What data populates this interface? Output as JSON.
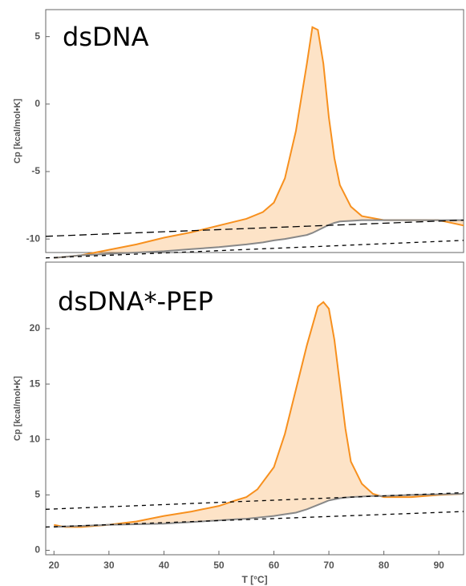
{
  "chart_data": [
    {
      "type": "line",
      "label": "dsDNA",
      "ylabel": "Cp [kcal/mol•K]",
      "xlim": [
        18.5,
        94.5
      ],
      "ylim": [
        -11,
        7
      ],
      "yticks": [
        -10,
        -5,
        0,
        5
      ],
      "series": [
        {
          "color": "#f7901e",
          "x": [
            20,
            25,
            30,
            35,
            40,
            45,
            50,
            55,
            58,
            60,
            62,
            64,
            66,
            67,
            68,
            69,
            70,
            71,
            72,
            74,
            76,
            80,
            85,
            90,
            94.5
          ],
          "values": [
            -11.4,
            -11.2,
            -10.8,
            -10.4,
            -9.9,
            -9.5,
            -9.0,
            -8.5,
            -8.0,
            -7.3,
            -5.5,
            -2,
            3,
            5.7,
            5.5,
            3,
            -1,
            -4,
            -6,
            -7.6,
            -8.3,
            -8.6,
            -8.6,
            -8.6,
            -9.0
          ]
        },
        {
          "color": "#888888",
          "x": [
            20,
            25,
            30,
            35,
            40,
            45,
            50,
            55,
            58,
            60,
            62,
            64,
            66,
            67,
            68,
            69,
            70,
            71,
            72,
            74,
            76,
            80,
            85,
            90,
            94.5
          ],
          "values": [
            -11.4,
            -11.2,
            -11.1,
            -11.0,
            -10.9,
            -10.75,
            -10.6,
            -10.4,
            -10.25,
            -10.1,
            -10.0,
            -9.85,
            -9.7,
            -9.55,
            -9.35,
            -9.15,
            -8.95,
            -8.8,
            -8.7,
            -8.65,
            -8.6,
            -8.6,
            -8.6,
            -8.6,
            -8.6
          ]
        },
        {
          "color": "#000000",
          "dashed": true,
          "x": [
            18.5,
            94.5
          ],
          "values": [
            -9.8,
            -8.6
          ]
        },
        {
          "color": "#000000",
          "dashed": true,
          "x": [
            18.5,
            94.5
          ],
          "values": [
            -11.4,
            -10.1
          ]
        }
      ]
    },
    {
      "type": "line",
      "label": "dsDNA*-PEP",
      "ylabel": "Cp [kcal/mol•K]",
      "xlabel": "T  [°C]",
      "xlim": [
        18.5,
        94.5
      ],
      "ylim": [
        -0.4,
        26
      ],
      "yticks": [
        0,
        5,
        10,
        15,
        20
      ],
      "xticks": [
        20,
        30,
        40,
        50,
        60,
        70,
        80,
        90
      ],
      "series": [
        {
          "color": "#f7901e",
          "x": [
            20,
            22,
            25,
            30,
            35,
            40,
            45,
            50,
            53,
            55,
            57,
            60,
            62,
            64,
            66,
            68,
            69,
            70,
            71,
            72,
            73,
            74,
            76,
            78,
            80,
            85,
            90,
            94.5
          ],
          "values": [
            2.3,
            2.1,
            2.1,
            2.3,
            2.6,
            3.1,
            3.5,
            4.0,
            4.5,
            4.8,
            5.5,
            7.5,
            10.5,
            14.5,
            18.5,
            22,
            22.4,
            21.8,
            19,
            15,
            11,
            8,
            6,
            5.1,
            4.8,
            4.8,
            5.0,
            5.1
          ]
        },
        {
          "color": "#888888",
          "x": [
            20,
            22,
            25,
            30,
            35,
            40,
            45,
            50,
            53,
            55,
            57,
            60,
            62,
            64,
            66,
            68,
            69,
            70,
            71,
            72,
            73,
            74,
            76,
            78,
            80,
            85,
            90,
            94.5
          ],
          "values": [
            2.1,
            2.15,
            2.2,
            2.3,
            2.35,
            2.4,
            2.55,
            2.7,
            2.8,
            2.85,
            2.95,
            3.1,
            3.25,
            3.4,
            3.7,
            4.1,
            4.3,
            4.5,
            4.6,
            4.7,
            4.75,
            4.8,
            4.85,
            4.9,
            4.9,
            5.0,
            5.05,
            5.1
          ]
        },
        {
          "color": "#000000",
          "dashed": true,
          "x": [
            18.5,
            94.5
          ],
          "values": [
            3.7,
            5.2
          ]
        },
        {
          "color": "#000000",
          "dashed": true,
          "x": [
            18.5,
            94.5
          ],
          "values": [
            2.1,
            3.5
          ]
        }
      ]
    }
  ]
}
